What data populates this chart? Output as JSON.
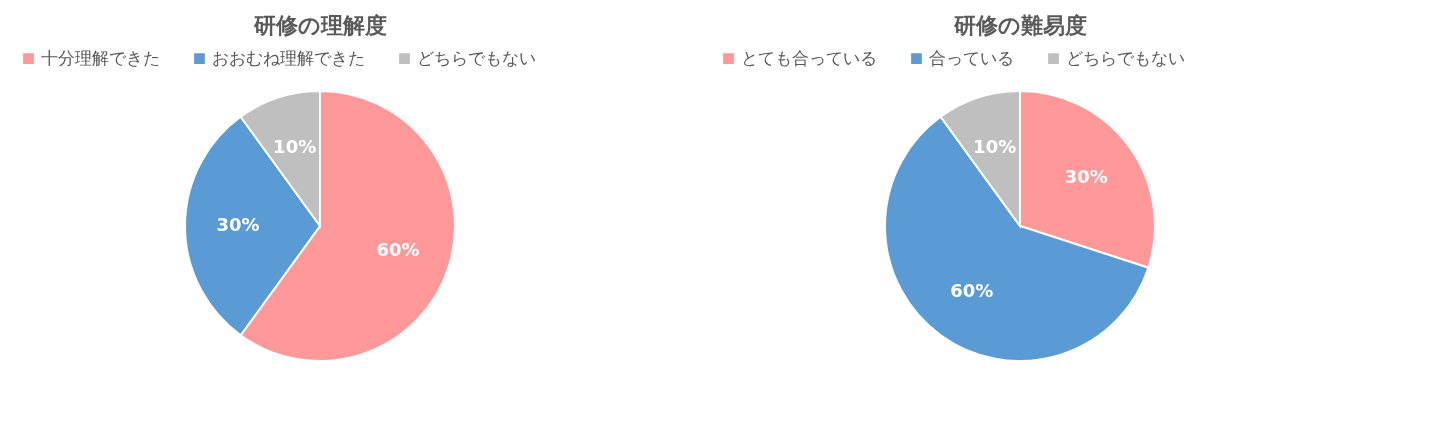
{
  "chart_data": [
    {
      "type": "pie",
      "title": "研修の理解度",
      "categories": [
        "十分理解できた",
        "おおむね理解できた",
        "どちらでもない"
      ],
      "values": [
        60,
        30,
        10
      ],
      "colors": [
        "#ff9999",
        "#5b9bd5",
        "#bfbfbf"
      ],
      "value_labels": [
        "60%",
        "30%",
        "10%"
      ],
      "legend": "top"
    },
    {
      "type": "pie",
      "title": "研修の難易度",
      "categories": [
        "とても合っている",
        "合っている",
        "どちらでもない"
      ],
      "values": [
        30,
        60,
        10
      ],
      "colors": [
        "#ff9999",
        "#5b9bd5",
        "#bfbfbf"
      ],
      "value_labels": [
        "30%",
        "60%",
        "10%"
      ],
      "legend": "top"
    }
  ]
}
